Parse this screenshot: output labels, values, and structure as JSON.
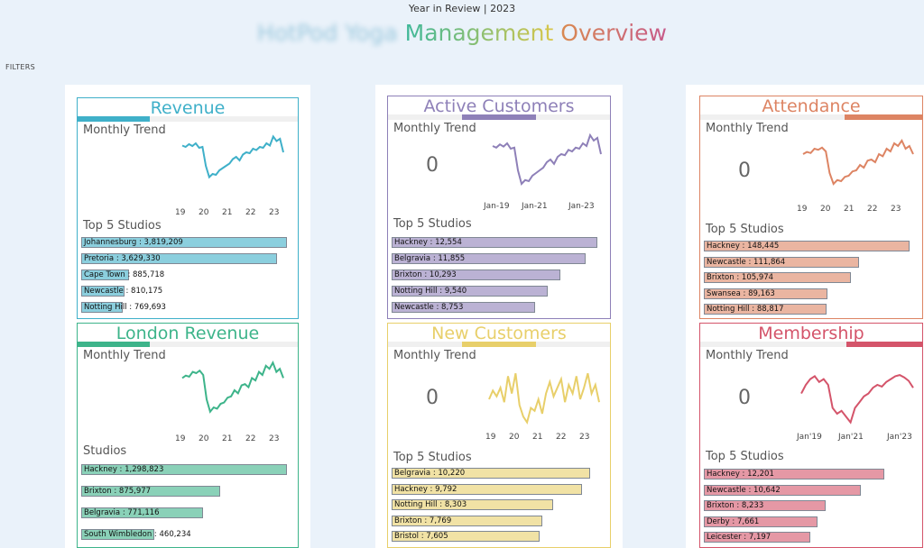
{
  "header": {
    "caption": "Year in Review | 2023",
    "title_brand": "HotPod Yoga",
    "title_word1": "Management",
    "title_word2": "Overview"
  },
  "filters_label": "FILTERS",
  "colors": {
    "revenue": "#3fb0c9",
    "active": "#8e80b8",
    "attendance": "#dd8463",
    "london": "#3db48a",
    "new": "#e8cf6a",
    "membership": "#d4546a"
  },
  "cards": {
    "revenue": {
      "title": "Revenue",
      "subtitle": "Monthly Trend",
      "list_title": "Top 5 Studios",
      "x_ticks": [
        "19",
        "20",
        "21",
        "22",
        "23"
      ],
      "bars": [
        {
          "label": "Johannesburg : 3,819,209",
          "value": 3819209
        },
        {
          "label": "Pretoria : 3,629,330",
          "value": 3629330
        },
        {
          "label": "Cape Town : 885,718",
          "value": 885718
        },
        {
          "label": "Newcastle : 810,175",
          "value": 810175
        },
        {
          "label": "Notting Hill : 769,693",
          "value": 769693
        }
      ]
    },
    "active": {
      "title": "Active Customers",
      "subtitle": "Monthly Trend",
      "kpi": "0",
      "list_title": "Top 5 Studios",
      "x_ticks": [
        "Jan-19",
        "Jan-21",
        "Jan-23"
      ],
      "bars": [
        {
          "label": "Hackney : 12,554",
          "value": 12554
        },
        {
          "label": "Belgravia : 11,855",
          "value": 11855
        },
        {
          "label": "Brixton : 10,293",
          "value": 10293
        },
        {
          "label": "Notting Hill : 9,540",
          "value": 9540
        },
        {
          "label": "Newcastle : 8,753",
          "value": 8753
        }
      ]
    },
    "attendance": {
      "title": "Attendance",
      "subtitle": "Monthly Trend",
      "kpi": "0",
      "list_title": "Top 5 Studios",
      "x_ticks": [
        "19",
        "20",
        "21",
        "22",
        "23"
      ],
      "bars": [
        {
          "label": "Hackney : 148,445",
          "value": 148445
        },
        {
          "label": "Newcastle : 111,864",
          "value": 111864
        },
        {
          "label": "Brixton : 105,974",
          "value": 105974
        },
        {
          "label": "Swansea : 89,163",
          "value": 89163
        },
        {
          "label": "Notting Hill : 88,817",
          "value": 88817
        }
      ]
    },
    "london": {
      "title": "London Revenue",
      "subtitle": "Monthly Trend",
      "list_title": "Studios",
      "x_ticks": [
        "19",
        "20",
        "21",
        "22",
        "23"
      ],
      "bars": [
        {
          "label": "Hackney : 1,298,823",
          "value": 1298823
        },
        {
          "label": "Brixton : 875,977",
          "value": 875977
        },
        {
          "label": "Belgravia : 771,116",
          "value": 771116
        },
        {
          "label": "South Wimbledon : 460,234",
          "value": 460234
        }
      ]
    },
    "new": {
      "title": "New Customers",
      "subtitle": "Monthly Trend",
      "kpi": "0",
      "list_title": "Top 5 Studios",
      "x_ticks": [
        "19",
        "20",
        "21",
        "22",
        "23"
      ],
      "bars": [
        {
          "label": "Belgravia : 10,220",
          "value": 10220
        },
        {
          "label": "Hackney : 9,792",
          "value": 9792
        },
        {
          "label": "Notting Hill : 8,303",
          "value": 8303
        },
        {
          "label": "Brixton : 7,769",
          "value": 7769
        },
        {
          "label": "Bristol : 7,605",
          "value": 7605
        }
      ]
    },
    "membership": {
      "title": "Membership",
      "subtitle": "Monthly Trend",
      "kpi": "0",
      "list_title": "Top 5 Studios",
      "x_ticks": [
        "Jan'19",
        "Jan'21",
        "Jan'23"
      ],
      "bars": [
        {
          "label": "Hackney : 12,201",
          "value": 12201
        },
        {
          "label": "Newcastle : 10,642",
          "value": 10642
        },
        {
          "label": "Brixton : 8,233",
          "value": 8233
        },
        {
          "label": "Derby : 7,661",
          "value": 7661
        },
        {
          "label": "Leicester : 7,197",
          "value": 7197
        }
      ]
    }
  }
}
